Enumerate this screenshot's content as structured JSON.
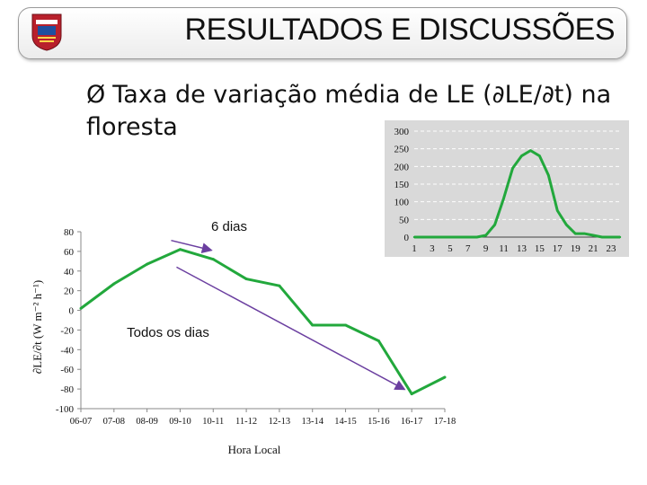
{
  "header": {
    "title": "RESULTADOS E DISCUSSÕES"
  },
  "bullet": {
    "marker": "Ø",
    "line1": "Taxa de variação média de LE (∂LE/∂t) na",
    "line2": "floresta"
  },
  "chart_data": [
    {
      "type": "line",
      "title": "",
      "xlabel": "Hora Local",
      "ylabel": "∂LE/∂t (W m⁻² h⁻¹)",
      "categories": [
        "06-07",
        "07-08",
        "08-09",
        "09-10",
        "10-11",
        "11-12",
        "12-13",
        "13-14",
        "14-15",
        "15-16",
        "16-17",
        "17-18"
      ],
      "series": [
        {
          "color": "#22a83c",
          "values": [
            2,
            27,
            47,
            62,
            52,
            32,
            25,
            -15,
            -15,
            -31,
            -85,
            -68
          ]
        }
      ],
      "ylim": [
        -100,
        80
      ],
      "yticks": [
        -100,
        -80,
        -60,
        -40,
        -20,
        0,
        20,
        40,
        60,
        80
      ],
      "annotations": [
        {
          "text": "6 dias",
          "from": [
            "09-10",
            62
          ],
          "to": [
            "10-11",
            52
          ]
        },
        {
          "text": "Todos os dias",
          "from": [
            "09-10",
            44
          ],
          "to": [
            "16-17",
            -85
          ]
        }
      ],
      "annotation_color": "#6b3fa0"
    },
    {
      "type": "line",
      "title": "",
      "x": [
        1,
        2,
        3,
        4,
        5,
        6,
        7,
        8,
        9,
        10,
        11,
        12,
        13,
        14,
        15,
        16,
        17,
        18,
        19,
        20,
        21,
        22,
        23,
        24
      ],
      "xticklabels": [
        "1",
        "3",
        "5",
        "7",
        "9",
        "11",
        "13",
        "15",
        "17",
        "19",
        "21",
        "23"
      ],
      "series": [
        {
          "color": "#22a83c",
          "values": [
            0,
            0,
            0,
            0,
            0,
            0,
            0,
            0,
            5,
            35,
            110,
            195,
            230,
            245,
            230,
            175,
            75,
            35,
            10,
            10,
            5,
            0,
            0,
            0
          ]
        }
      ],
      "ylim": [
        0,
        300
      ],
      "yticks": [
        0,
        50,
        100,
        150,
        200,
        250,
        300
      ],
      "grid": true,
      "background": "#d9d9d9"
    }
  ]
}
